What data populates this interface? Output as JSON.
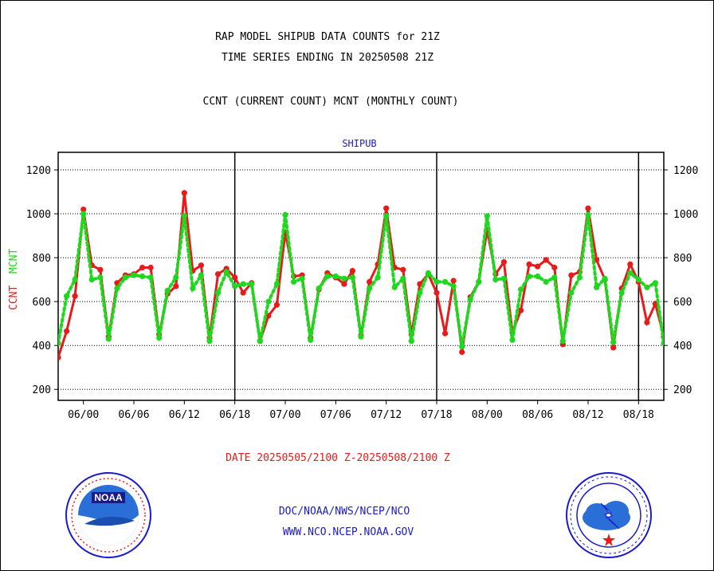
{
  "titles": {
    "line1": "RAP MODEL SHIPUB DATA COUNTS for 21Z",
    "line2": "TIME SERIES ENDING IN 20250508 21Z",
    "line3": "CCNT (CURRENT COUNT) MCNT (MONTHLY COUNT)"
  },
  "panel_label": "SHIPUB",
  "date_range": "DATE 20250505/2100 Z-20250508/2100 Z",
  "footer": {
    "line1": "DOC/NOAA/NWS/NCEP/NCO",
    "line2": "WWW.NCO.NCEP.NOAA.GOV"
  },
  "colors": {
    "ccnt": "#e81b1b",
    "mcnt": "#1ed81e",
    "text_blue": "#1a1acc",
    "axis": "#000000"
  },
  "logos": {
    "left": "noaa-logo",
    "right": "national-weather-service-logo"
  },
  "chart_data": {
    "type": "line",
    "ylabel_ccnt": "CCNT",
    "ylabel_mcnt": "MCNT",
    "ylim": [
      150,
      1280
    ],
    "yticks": [
      200,
      400,
      600,
      800,
      1000,
      1200
    ],
    "xlim": [
      -1,
      71
    ],
    "xticks": [
      {
        "x": 2,
        "label": "06/00"
      },
      {
        "x": 8,
        "label": "06/06"
      },
      {
        "x": 14,
        "label": "06/12"
      },
      {
        "x": 20,
        "label": "06/18"
      },
      {
        "x": 26,
        "label": "07/00"
      },
      {
        "x": 32,
        "label": "07/06"
      },
      {
        "x": 38,
        "label": "07/12"
      },
      {
        "x": 44,
        "label": "07/18"
      },
      {
        "x": 50,
        "label": "08/00"
      },
      {
        "x": 56,
        "label": "08/06"
      },
      {
        "x": 62,
        "label": "08/12"
      },
      {
        "x": 68,
        "label": "08/18"
      }
    ],
    "day_separators": [
      20,
      44,
      68
    ],
    "grid": true,
    "series": [
      {
        "name": "CCNT",
        "style": "solid",
        "values": [
          345,
          465,
          625,
          1020,
          765,
          745,
          440,
          685,
          720,
          725,
          755,
          755,
          450,
          635,
          670,
          1095,
          740,
          765,
          435,
          725,
          750,
          710,
          640,
          685,
          420,
          535,
          585,
          915,
          715,
          720,
          435,
          655,
          730,
          710,
          680,
          740,
          445,
          690,
          770,
          1025,
          755,
          745,
          450,
          680,
          725,
          640,
          455,
          695,
          370,
          620,
          690,
          925,
          725,
          780,
          460,
          560,
          770,
          760,
          790,
          755,
          405,
          720,
          735,
          1025,
          790,
          700,
          390,
          660,
          770,
          690,
          505,
          590,
          440
        ],
        "x_start": -1
      },
      {
        "name": "MCNT",
        "style": "dotted",
        "values": [
          410,
          625,
          700,
          1000,
          700,
          710,
          430,
          660,
          710,
          720,
          715,
          710,
          435,
          650,
          710,
          990,
          660,
          720,
          420,
          640,
          735,
          670,
          680,
          680,
          420,
          600,
          680,
          995,
          690,
          705,
          425,
          660,
          715,
          715,
          705,
          710,
          440,
          660,
          710,
          990,
          665,
          705,
          420,
          640,
          730,
          690,
          690,
          670,
          395,
          610,
          690,
          990,
          700,
          705,
          425,
          655,
          715,
          715,
          690,
          710,
          420,
          640,
          710,
          995,
          665,
          705,
          415,
          640,
          730,
          700,
          665,
          685,
          410
        ],
        "x_start": -1
      }
    ]
  }
}
